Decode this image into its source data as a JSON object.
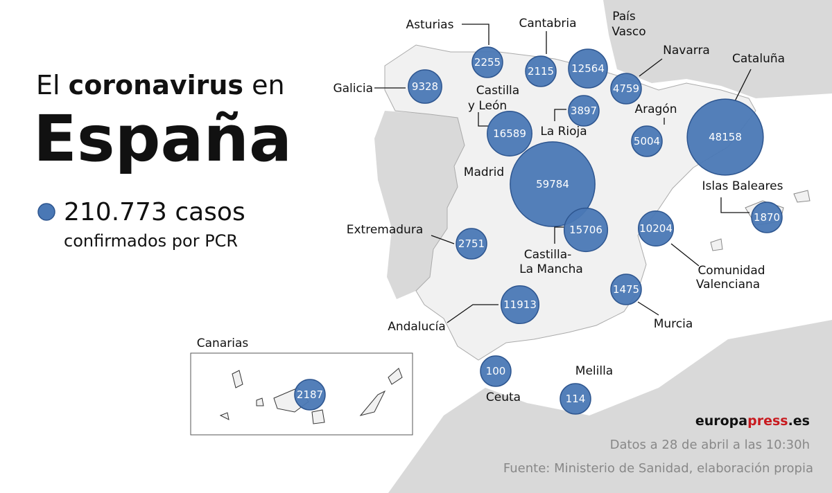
{
  "header": {
    "title_pre": "El",
    "title_bold": "coronavirus",
    "title_post": "en",
    "country": "España",
    "total": "210.773 casos",
    "total_note": "confirmados por PCR"
  },
  "regions": [
    {
      "name": [
        "Galicia"
      ],
      "cases": 9328
    },
    {
      "name": [
        "Asturias"
      ],
      "cases": 2255
    },
    {
      "name": [
        "Cantabria"
      ],
      "cases": 2115
    },
    {
      "name": [
        "País",
        "Vasco"
      ],
      "cases": 12564
    },
    {
      "name": [
        "Navarra"
      ],
      "cases": 4759
    },
    {
      "name": [
        "Cataluña"
      ],
      "cases": 48158
    },
    {
      "name": [
        "Castilla",
        "y León"
      ],
      "cases": 16589
    },
    {
      "name": [
        "La Rioja"
      ],
      "cases": 3897
    },
    {
      "name": [
        "Aragón"
      ],
      "cases": 5004
    },
    {
      "name": [
        "Madrid"
      ],
      "cases": 59784
    },
    {
      "name": [
        "Castilla-",
        "La Mancha"
      ],
      "cases": 15706
    },
    {
      "name": [
        "Extremadura"
      ],
      "cases": 2751
    },
    {
      "name": [
        "Comunidad",
        "Valenciana"
      ],
      "cases": 10204
    },
    {
      "name": [
        "Islas Baleares"
      ],
      "cases": 1870
    },
    {
      "name": [
        "Murcia"
      ],
      "cases": 1475
    },
    {
      "name": [
        "Andalucía"
      ],
      "cases": 11913
    },
    {
      "name": [
        "Ceuta"
      ],
      "cases": 100
    },
    {
      "name": [
        "Melilla"
      ],
      "cases": 114
    },
    {
      "name": [
        "Canarias"
      ],
      "cases": 2187
    }
  ],
  "footer": {
    "brand": [
      "europa",
      "press",
      ".es"
    ],
    "date": "Datos a 28 de abril a las 10:30h",
    "source": "Fuente: Ministerio de Sanidad, elaboración propia"
  }
}
